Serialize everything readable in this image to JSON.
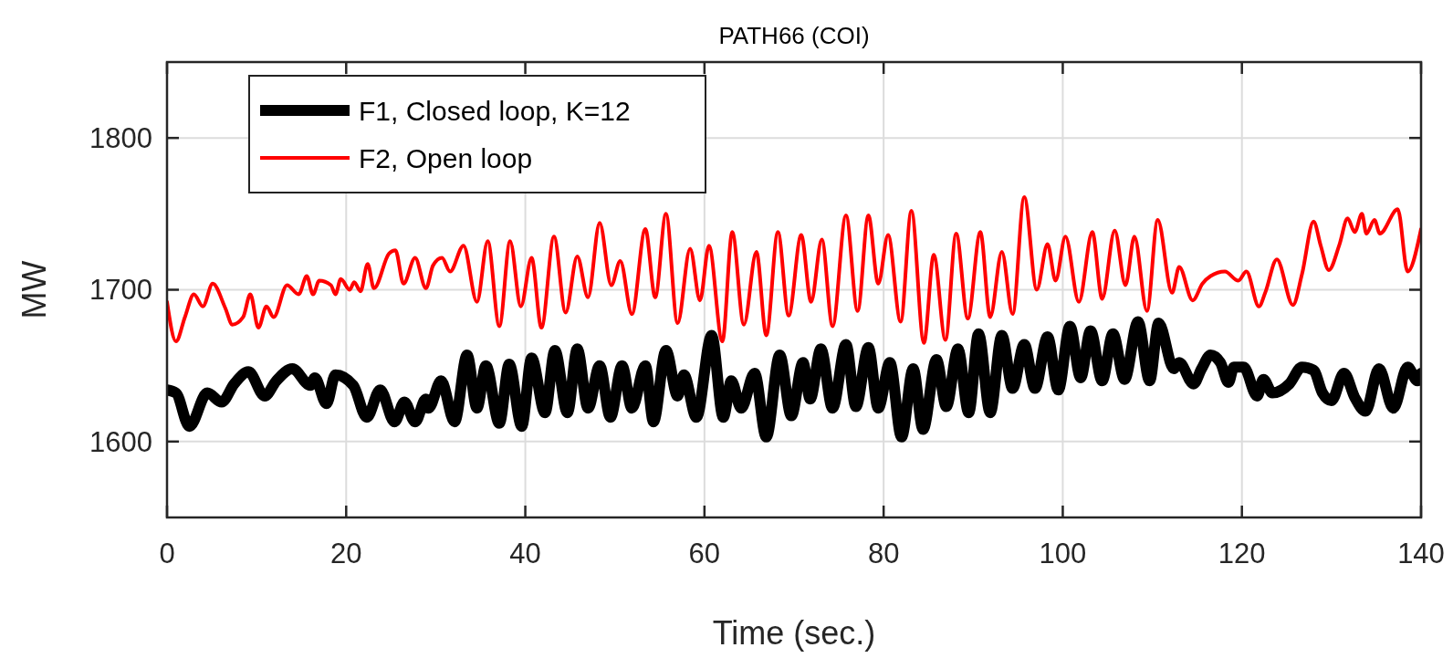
{
  "chart_data": {
    "type": "line",
    "title": "PATH66 (COI)",
    "xlabel": "Time (sec.)",
    "ylabel": "MW",
    "xlim": [
      0,
      140
    ],
    "ylim": [
      1550,
      1850
    ],
    "xticks": [
      0,
      20,
      40,
      60,
      80,
      100,
      120,
      140
    ],
    "yticks": [
      1600,
      1700,
      1800
    ],
    "grid": true,
    "legend": "top left",
    "series": [
      {
        "name": "F1, Closed loop, K=12",
        "color": "#000000",
        "x": [
          0,
          1,
          2.5,
          4.5,
          6.1,
          7.5,
          9.1,
          10.9,
          12.2,
          14,
          16,
          16.5,
          17.8,
          18.8,
          20.8,
          22.3,
          23.8,
          25.4,
          26.5,
          27.7,
          28.9,
          29.2,
          30.6,
          32.1,
          33.5,
          34.6,
          35.6,
          37.1,
          38.2,
          39.6,
          40.7,
          42.2,
          43.3,
          44.7,
          45.8,
          47,
          48.3,
          49.5,
          50.8,
          51.9,
          53.4,
          54.3,
          55.7,
          57,
          57.7,
          59.1,
          60.8,
          62.1,
          63,
          64.1,
          65.6,
          66.9,
          68.4,
          69.7,
          71,
          71.8,
          73,
          74.3,
          75.8,
          76.9,
          78.3,
          79.4,
          80.7,
          82,
          83.3,
          84.4,
          85.9,
          87,
          88.3,
          89.5,
          90.6,
          91.9,
          93.2,
          94.4,
          95.7,
          96.9,
          98.3,
          99.5,
          100.8,
          102,
          103.1,
          104.4,
          105.6,
          106.9,
          108.4,
          109.7,
          110.7,
          112.4,
          113,
          114.6,
          115.5,
          116.5,
          117.6,
          118.5,
          119.1,
          120.2,
          121.7,
          122.4,
          123.4,
          125.3,
          126.7,
          128,
          129,
          130,
          131.4,
          132.6,
          133.8,
          135.3,
          136.9,
          138.5,
          139.6,
          140
        ],
        "values": [
          1634,
          1632,
          1610,
          1632,
          1626,
          1638,
          1646,
          1630,
          1640,
          1648,
          1637,
          1642,
          1625,
          1644,
          1637,
          1616,
          1634,
          1613,
          1626,
          1613,
          1628,
          1622,
          1640,
          1613,
          1657,
          1622,
          1650,
          1612,
          1651,
          1610,
          1655,
          1619,
          1660,
          1619,
          1661,
          1622,
          1650,
          1616,
          1650,
          1622,
          1650,
          1613,
          1660,
          1630,
          1644,
          1616,
          1670,
          1616,
          1640,
          1622,
          1645,
          1603,
          1657,
          1617,
          1652,
          1628,
          1661,
          1622,
          1664,
          1623,
          1662,
          1622,
          1652,
          1603,
          1648,
          1608,
          1654,
          1623,
          1661,
          1619,
          1671,
          1619,
          1670,
          1635,
          1664,
          1635,
          1669,
          1634,
          1676,
          1642,
          1673,
          1640,
          1671,
          1641,
          1679,
          1640,
          1678,
          1648,
          1652,
          1638,
          1648,
          1657,
          1652,
          1639,
          1649,
          1649,
          1630,
          1641,
          1632,
          1638,
          1649,
          1647,
          1632,
          1627,
          1645,
          1629,
          1620,
          1648,
          1622,
          1649,
          1640,
          1645
        ]
      },
      {
        "name": "F2, Open loop",
        "color": "#ff0000",
        "x": [
          0,
          1,
          2,
          3,
          4,
          5.1,
          6.5,
          7.3,
          8.5,
          9.3,
          10.2,
          11.1,
          11.9,
          13.4,
          14.7,
          15.6,
          16.3,
          17,
          18.3,
          18.8,
          19.4,
          20.4,
          20.9,
          21.6,
          22.4,
          23.1,
          24.8,
          25.5,
          26.4,
          27.7,
          28.9,
          29.7,
          30.7,
          31.6,
          33.1,
          34.6,
          35.8,
          37.1,
          38.3,
          39.5,
          40.7,
          41.8,
          43.2,
          44.5,
          45.8,
          47,
          48.3,
          49.6,
          50.6,
          51.9,
          53.4,
          54.5,
          55.7,
          57,
          58.4,
          59.5,
          60.5,
          62,
          63.1,
          64.4,
          65.8,
          66.9,
          68.2,
          69.4,
          70.8,
          71.9,
          73.1,
          74.3,
          75.8,
          77.1,
          78.3,
          79.4,
          80.5,
          81.9,
          83.1,
          84.5,
          85.6,
          86.9,
          88.1,
          89.4,
          90.8,
          91.9,
          93.2,
          94.4,
          95.7,
          97.1,
          98.3,
          99.2,
          100.3,
          101.8,
          103.3,
          104.4,
          105.8,
          107,
          108,
          109.4,
          110.6,
          112.2,
          113,
          114.5,
          115.6,
          116.5,
          118.1,
          119.6,
          120.5,
          121.9,
          122.6,
          123.9,
          125.7,
          126.7,
          128,
          128.8,
          129.7,
          130.9,
          131.8,
          132.6,
          133.4,
          133.9,
          134.8,
          135.4,
          137.4,
          138.5,
          140
        ],
        "values": [
          1692,
          1666,
          1682,
          1697,
          1689,
          1704,
          1688,
          1677,
          1682,
          1697,
          1675,
          1689,
          1682,
          1703,
          1697,
          1709,
          1697,
          1706,
          1703,
          1697,
          1707,
          1700,
          1705,
          1699,
          1717,
          1701,
          1724,
          1726,
          1704,
          1721,
          1701,
          1716,
          1721,
          1712,
          1729,
          1692,
          1732,
          1676,
          1732,
          1689,
          1721,
          1675,
          1735,
          1685,
          1722,
          1695,
          1744,
          1703,
          1719,
          1684,
          1740,
          1695,
          1750,
          1678,
          1727,
          1693,
          1729,
          1666,
          1738,
          1677,
          1725,
          1670,
          1738,
          1683,
          1736,
          1692,
          1733,
          1676,
          1749,
          1686,
          1749,
          1704,
          1736,
          1679,
          1752,
          1665,
          1723,
          1667,
          1737,
          1681,
          1738,
          1682,
          1725,
          1684,
          1761,
          1700,
          1730,
          1706,
          1735,
          1692,
          1738,
          1694,
          1739,
          1703,
          1735,
          1686,
          1746,
          1698,
          1715,
          1693,
          1704,
          1709,
          1712,
          1706,
          1712,
          1689,
          1698,
          1720,
          1690,
          1710,
          1745,
          1729,
          1713,
          1730,
          1747,
          1738,
          1750,
          1737,
          1746,
          1737,
          1753,
          1712,
          1740
        ]
      }
    ]
  }
}
